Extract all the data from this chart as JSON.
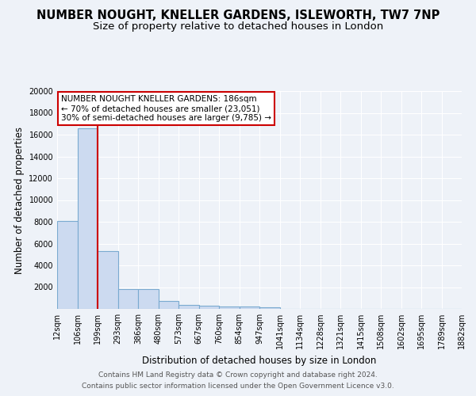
{
  "title": "NUMBER NOUGHT, KNELLER GARDENS, ISLEWORTH, TW7 7NP",
  "subtitle": "Size of property relative to detached houses in London",
  "xlabel": "Distribution of detached houses by size in London",
  "ylabel": "Number of detached properties",
  "bar_color": "#ccdaf0",
  "bar_edgecolor": "#7aaad0",
  "bins": [
    "12sqm",
    "106sqm",
    "199sqm",
    "293sqm",
    "386sqm",
    "480sqm",
    "573sqm",
    "667sqm",
    "760sqm",
    "854sqm",
    "947sqm",
    "1041sqm",
    "1134sqm",
    "1228sqm",
    "1321sqm",
    "1415sqm",
    "1508sqm",
    "1602sqm",
    "1695sqm",
    "1789sqm",
    "1882sqm"
  ],
  "values": [
    8100,
    16600,
    5300,
    1850,
    1850,
    700,
    380,
    300,
    220,
    200,
    180,
    0,
    0,
    0,
    0,
    0,
    0,
    0,
    0,
    0
  ],
  "property_line_x": 2,
  "property_line_color": "#cc0000",
  "annotation_text": "NUMBER NOUGHT KNELLER GARDENS: 186sqm\n← 70% of detached houses are smaller (23,051)\n30% of semi-detached houses are larger (9,785) →",
  "annotation_box_color": "#ffffff",
  "annotation_box_edgecolor": "#cc0000",
  "ylim": [
    0,
    20000
  ],
  "yticks": [
    0,
    2000,
    4000,
    6000,
    8000,
    10000,
    12000,
    14000,
    16000,
    18000,
    20000
  ],
  "footer1": "Contains HM Land Registry data © Crown copyright and database right 2024.",
  "footer2": "Contains public sector information licensed under the Open Government Licence v3.0.",
  "bg_color": "#eef2f8",
  "grid_color": "#ffffff",
  "title_fontsize": 10.5,
  "subtitle_fontsize": 9.5,
  "tick_fontsize": 7,
  "ylabel_fontsize": 8.5,
  "xlabel_fontsize": 8.5,
  "footer_fontsize": 6.5
}
